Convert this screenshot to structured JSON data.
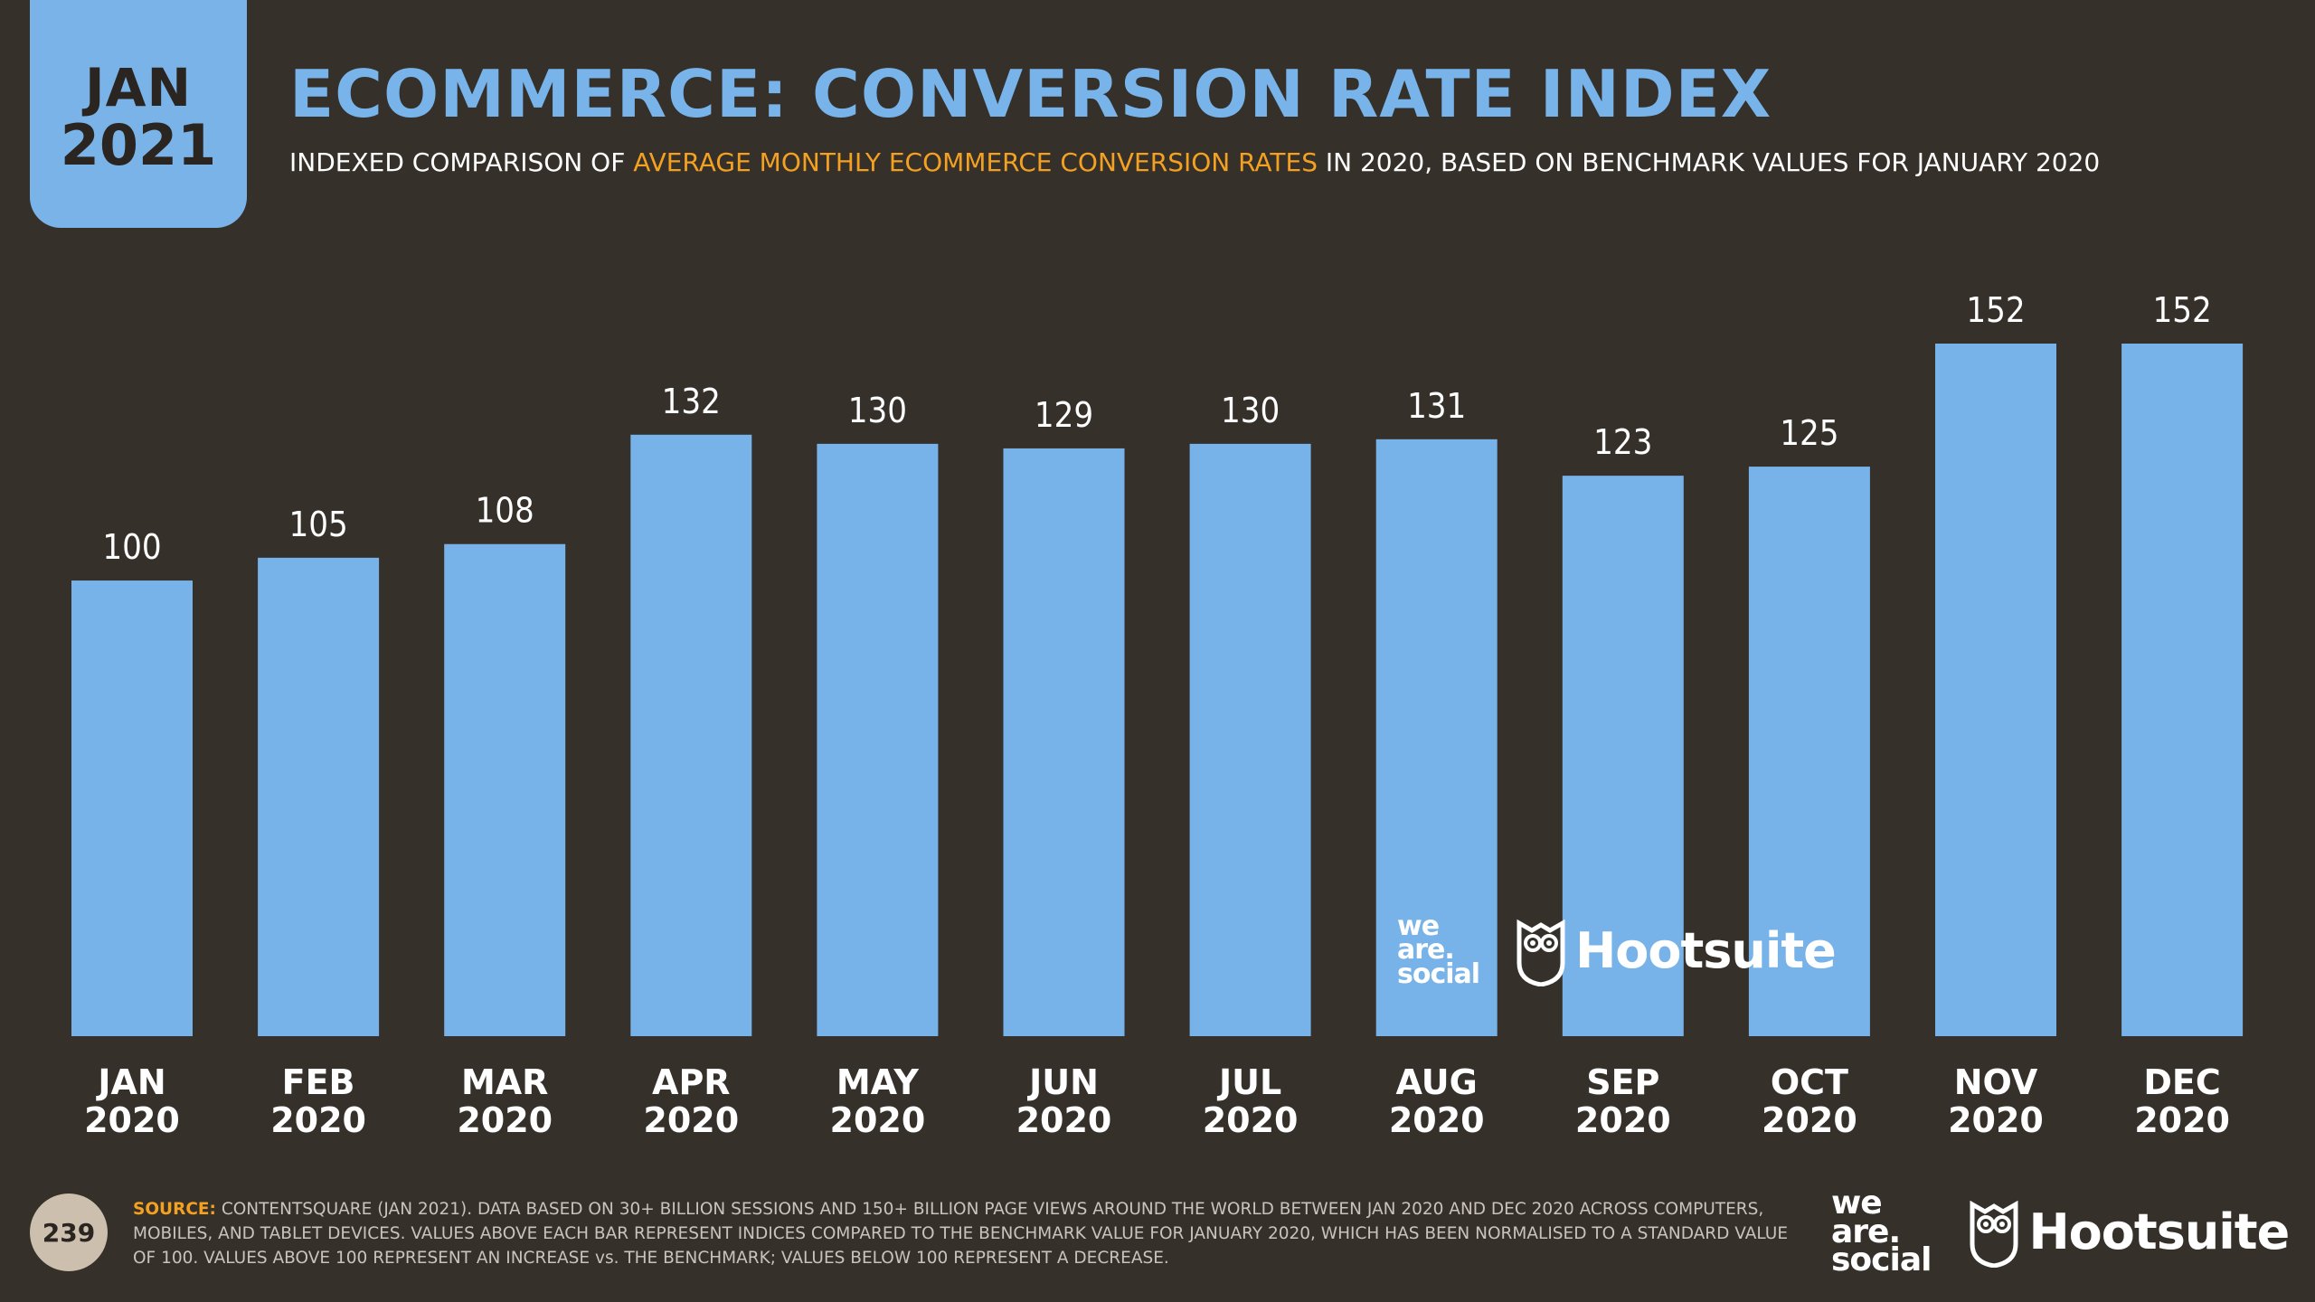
{
  "date_tab": {
    "month": "JAN",
    "year": "2021"
  },
  "header": {
    "title": "ECOMMERCE: CONVERSION RATE INDEX",
    "subtitle_pre": "INDEXED COMPARISON OF ",
    "subtitle_highlight": "AVERAGE MONTHLY ECOMMERCE CONVERSION RATES",
    "subtitle_post": " IN 2020, BASED ON BENCHMARK VALUES FOR JANUARY 2020"
  },
  "chart_data": {
    "type": "bar",
    "categories": [
      [
        "JAN",
        "2020"
      ],
      [
        "FEB",
        "2020"
      ],
      [
        "MAR",
        "2020"
      ],
      [
        "APR",
        "2020"
      ],
      [
        "MAY",
        "2020"
      ],
      [
        "JUN",
        "2020"
      ],
      [
        "JUL",
        "2020"
      ],
      [
        "AUG",
        "2020"
      ],
      [
        "SEP",
        "2020"
      ],
      [
        "OCT",
        "2020"
      ],
      [
        "NOV",
        "2020"
      ],
      [
        "DEC",
        "2020"
      ]
    ],
    "values": [
      100,
      105,
      108,
      132,
      130,
      129,
      130,
      131,
      123,
      125,
      152,
      152
    ],
    "ylim": [
      0,
      152
    ],
    "bar_color": "#77b2e9",
    "data_labels": true,
    "grid": false
  },
  "footer": {
    "page_number": "239",
    "source_label": "SOURCE:",
    "source_text": " CONTENTSQUARE (JAN 2021). DATA BASED ON 30+ BILLION SESSIONS AND 150+ BILLION PAGE VIEWS AROUND THE WORLD BETWEEN JAN 2020 AND DEC 2020 ACROSS COMPUTERS, MOBILES, AND TABLET DEVICES. VALUES ABOVE EACH BAR REPRESENT INDICES COMPARED TO THE BENCHMARK VALUE FOR JANUARY 2020, WHICH HAS BEEN NORMALISED TO A STANDARD VALUE OF 100. VALUES ABOVE 100 REPRESENT AN INCREASE vs. THE BENCHMARK; VALUES BELOW 100 REPRESENT A DECREASE."
  },
  "branding": {
    "we_are_social": [
      "we",
      "are.",
      "social"
    ],
    "hootsuite": "Hootsuite",
    "hootsuite_icon": "owl-icon"
  },
  "colors": {
    "background": "#353029",
    "accent_blue": "#78b3ea",
    "highlight_orange": "#f4a122"
  }
}
